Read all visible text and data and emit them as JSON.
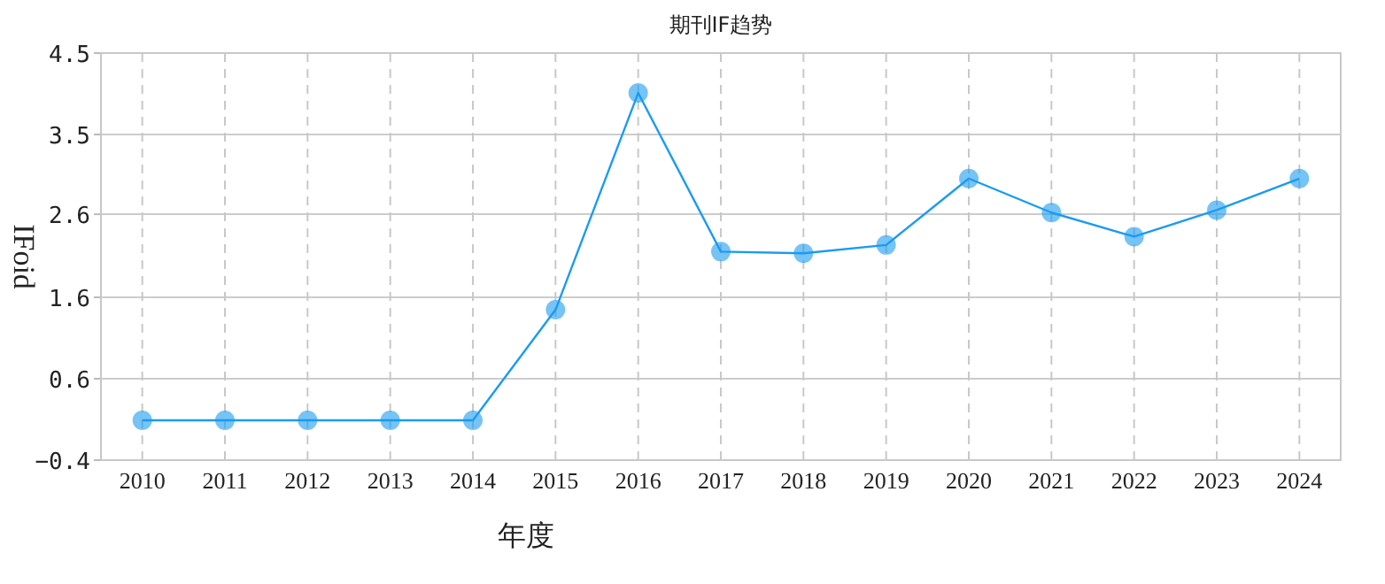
{
  "chart_data": {
    "type": "line",
    "title": "期刊IF趋势",
    "xlabel": "年度",
    "ylabel": "IFoid",
    "categories": [
      "2010",
      "2011",
      "2012",
      "2013",
      "2014",
      "2015",
      "2016",
      "2017",
      "2018",
      "2019",
      "2020",
      "2021",
      "2022",
      "2023",
      "2024"
    ],
    "series": [
      {
        "color": "#1a9bf0",
        "values": [
          0.08,
          0.08,
          0.08,
          0.08,
          0.08,
          1.41,
          4.02,
          2.11,
          2.09,
          2.19,
          2.99,
          2.58,
          2.29,
          2.61,
          2.99
        ]
      }
    ],
    "ylim": [
      -0.4,
      4.5
    ],
    "yticks": [
      -0.4,
      {
        "value": 0.58,
        "label": "0.6"
      },
      {
        "value": 1.56,
        "label": "1.6"
      },
      {
        "value": 2.56,
        "label": "2.6"
      },
      {
        "value": 3.52,
        "label": "3.5"
      },
      4.5
    ],
    "grid": true,
    "marker": "circle",
    "line_style": "solid"
  }
}
